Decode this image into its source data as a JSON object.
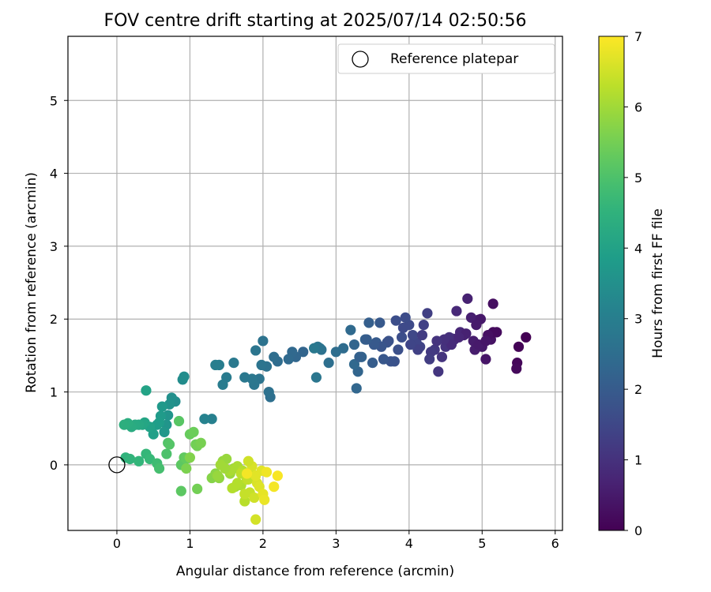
{
  "chart_data": {
    "type": "scatter",
    "title": "FOV centre drift starting at 2025/07/14 02:50:56",
    "xlabel": "Angular distance from reference (arcmin)",
    "ylabel": "Rotation from reference (arcmin)",
    "xlim": [
      -0.67,
      6.1
    ],
    "ylim": [
      -0.9,
      5.88
    ],
    "xticks": [
      0,
      1,
      2,
      3,
      4,
      5,
      6
    ],
    "yticks": [
      0,
      1,
      2,
      3,
      4,
      5
    ],
    "grid": true,
    "legend": {
      "placement": "top-right",
      "entries": [
        "Reference platepar"
      ]
    },
    "reference_point": {
      "x": 0,
      "y": 0
    },
    "colorbar": {
      "label": "Hours from first FF file",
      "range": [
        0,
        7
      ],
      "ticks": [
        0,
        1,
        2,
        3,
        4,
        5,
        6,
        7
      ],
      "colormap": "viridis"
    },
    "series": [
      {
        "name": "points",
        "x": [
          5.6,
          5.5,
          5.48,
          5.47,
          5.2,
          5.15,
          5.1,
          5.12,
          5.05,
          5.0,
          4.95,
          4.9,
          4.85,
          4.8,
          4.75,
          4.7,
          4.65,
          4.62,
          4.6,
          4.55,
          4.5,
          4.45,
          4.4,
          4.35,
          4.3,
          4.28,
          4.25,
          4.2,
          4.15,
          4.1,
          4.05,
          4.0,
          3.95,
          3.9,
          3.85,
          3.8,
          3.75,
          3.7,
          3.65,
          3.6,
          3.55,
          3.5,
          3.45,
          3.4,
          3.35,
          3.3,
          3.28,
          3.25,
          3.2,
          3.1,
          3.0,
          2.9,
          2.8,
          2.78,
          2.75,
          2.73,
          2.7,
          5.15,
          5.08,
          4.98,
          4.88,
          4.78,
          4.68,
          4.58,
          4.48,
          4.38,
          4.18,
          4.12,
          4.02,
          3.92,
          3.82,
          3.72,
          3.62,
          3.52,
          3.42,
          3.32,
          3.25,
          4.95,
          5.05,
          4.92
        ],
        "y": [
          1.75,
          1.62,
          1.4,
          1.32,
          1.82,
          2.21,
          1.78,
          1.72,
          1.45,
          1.62,
          1.99,
          1.58,
          2.02,
          2.28,
          1.78,
          1.82,
          2.11,
          1.72,
          1.73,
          1.75,
          1.62,
          1.48,
          1.28,
          1.58,
          1.55,
          1.45,
          2.08,
          1.92,
          1.62,
          1.68,
          1.78,
          1.92,
          2.02,
          1.75,
          1.58,
          1.42,
          1.42,
          1.68,
          1.45,
          1.95,
          1.68,
          1.4,
          1.95,
          1.72,
          1.48,
          1.28,
          1.05,
          1.38,
          1.85,
          1.6,
          1.55,
          1.4,
          1.58,
          1.6,
          1.62,
          1.2,
          1.6,
          1.82,
          1.78,
          2.0,
          1.7,
          1.8,
          1.75,
          1.65,
          1.72,
          1.7,
          1.78,
          1.58,
          1.65,
          1.88,
          1.98,
          1.7,
          1.62,
          1.65,
          1.72,
          1.48,
          1.65,
          1.65,
          1.7,
          1.92
        ],
        "c": [
          0.0,
          0.05,
          0.1,
          0.15,
          0.2,
          0.25,
          0.3,
          0.35,
          0.4,
          0.45,
          0.5,
          0.55,
          0.6,
          0.65,
          0.7,
          0.75,
          0.8,
          0.85,
          0.9,
          0.95,
          1.0,
          1.05,
          1.1,
          1.15,
          1.2,
          1.25,
          1.3,
          1.35,
          1.4,
          1.45,
          1.5,
          1.55,
          1.6,
          1.65,
          1.7,
          1.75,
          1.8,
          1.85,
          1.9,
          1.95,
          2.0,
          2.05,
          2.1,
          2.15,
          2.2,
          2.25,
          2.3,
          2.35,
          2.4,
          2.45,
          2.5,
          2.55,
          2.6,
          2.65,
          2.7,
          2.75,
          2.8,
          0.2,
          0.3,
          0.45,
          0.55,
          0.65,
          0.75,
          0.85,
          0.95,
          1.05,
          1.25,
          1.35,
          1.45,
          1.55,
          1.65,
          1.75,
          1.85,
          1.95,
          2.05,
          2.15,
          2.25,
          0.5,
          0.4,
          0.5
        ]
      },
      {
        "name": "points-2",
        "x": [
          2.55,
          2.45,
          2.4,
          2.35,
          2.2,
          2.15,
          2.1,
          2.08,
          2.05,
          2.0,
          1.98,
          1.95,
          1.9,
          1.88,
          1.85,
          1.75,
          1.6,
          1.5,
          1.45,
          1.4,
          1.35,
          1.3,
          1.2,
          0.9,
          0.92,
          0.8,
          0.75,
          0.72,
          0.7,
          0.68,
          0.65,
          0.62,
          0.6,
          0.58,
          0.55,
          0.5,
          0.45,
          0.4,
          0.38,
          0.35,
          0.3,
          0.25,
          0.2,
          0.15,
          0.1,
          0.12,
          0.18,
          0.3,
          0.4,
          0.45,
          0.55,
          0.58,
          0.68,
          0.7,
          0.72,
          0.85,
          0.88,
          0.92,
          0.95,
          1.0,
          1.05,
          1.08,
          1.1,
          1.15,
          0.95,
          1.0
        ],
        "y": [
          1.55,
          1.48,
          1.55,
          1.45,
          1.42,
          1.48,
          0.93,
          1.0,
          1.35,
          1.7,
          1.37,
          1.18,
          1.57,
          1.1,
          1.18,
          1.2,
          1.4,
          1.2,
          1.1,
          1.37,
          1.37,
          0.63,
          0.63,
          1.17,
          1.21,
          0.87,
          0.92,
          0.83,
          0.68,
          0.55,
          0.45,
          0.8,
          0.67,
          0.58,
          0.55,
          0.42,
          0.52,
          1.02,
          0.58,
          0.55,
          0.55,
          0.55,
          0.52,
          0.57,
          0.55,
          0.1,
          0.08,
          0.05,
          0.15,
          0.08,
          0.02,
          -0.05,
          0.15,
          0.3,
          0.28,
          0.6,
          0.0,
          0.1,
          0.08,
          0.42,
          0.45,
          0.28,
          0.26,
          0.3,
          -0.05,
          0.1
        ],
        "c": [
          2.25,
          2.3,
          2.35,
          2.4,
          2.45,
          2.5,
          2.55,
          2.6,
          2.62,
          2.65,
          2.68,
          2.7,
          2.72,
          2.75,
          2.78,
          2.8,
          2.85,
          2.9,
          2.92,
          2.95,
          3.0,
          3.05,
          3.1,
          3.4,
          3.42,
          3.45,
          3.5,
          3.55,
          3.6,
          3.65,
          3.7,
          3.75,
          3.8,
          3.85,
          3.9,
          3.95,
          4.0,
          4.05,
          4.1,
          4.15,
          4.2,
          4.25,
          4.3,
          4.35,
          4.4,
          4.5,
          4.55,
          4.6,
          4.65,
          4.7,
          4.8,
          4.9,
          5.0,
          5.05,
          5.1,
          5.15,
          5.2,
          5.25,
          5.3,
          5.35,
          5.4,
          5.45,
          5.5,
          5.55,
          5.6,
          5.65
        ]
      },
      {
        "name": "points-3",
        "x": [
          1.3,
          1.35,
          1.4,
          1.45,
          1.5,
          1.55,
          1.6,
          1.62,
          1.65,
          1.7,
          1.72,
          1.75,
          1.78,
          1.8,
          1.82,
          1.85,
          1.88,
          1.9,
          1.92,
          1.95,
          1.98,
          2.0,
          2.02,
          2.05,
          2.15,
          2.2,
          1.85,
          1.9,
          1.8,
          1.75,
          1.7,
          1.65,
          1.55,
          1.48,
          0.88,
          1.1,
          1.38,
          1.58,
          1.42,
          1.78
        ],
        "y": [
          -0.18,
          -0.12,
          -0.18,
          0.05,
          0.08,
          -0.12,
          -0.05,
          -0.3,
          -0.02,
          -0.28,
          -0.08,
          -0.5,
          -0.2,
          -0.2,
          -0.38,
          -0.12,
          -0.45,
          -0.75,
          -0.25,
          -0.3,
          -0.08,
          -0.4,
          -0.48,
          -0.1,
          -0.3,
          -0.15,
          -0.02,
          -0.15,
          0.05,
          -0.4,
          -0.12,
          -0.25,
          -0.08,
          -0.05,
          -0.36,
          -0.33,
          -0.15,
          -0.32,
          0.0,
          -0.12
        ],
        "c": [
          5.7,
          5.75,
          5.8,
          5.85,
          5.9,
          5.95,
          6.0,
          6.05,
          6.1,
          6.15,
          6.2,
          6.25,
          6.3,
          6.35,
          6.4,
          6.45,
          6.5,
          6.55,
          6.6,
          6.65,
          6.7,
          6.75,
          6.8,
          6.85,
          6.9,
          6.95,
          6.6,
          6.7,
          6.5,
          6.4,
          6.3,
          6.2,
          6.1,
          6.0,
          5.2,
          5.5,
          5.9,
          6.2,
          6.0,
          6.9
        ]
      }
    ]
  }
}
